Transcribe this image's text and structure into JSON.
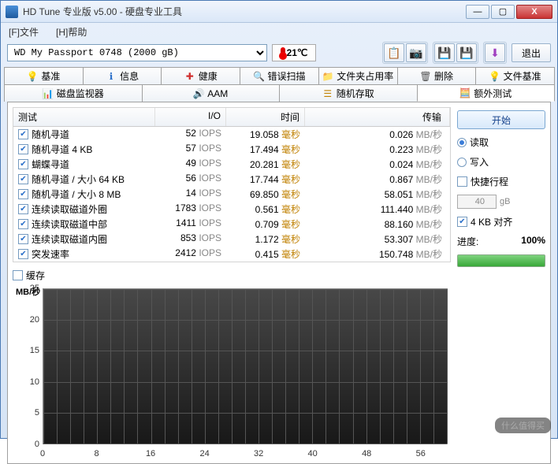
{
  "window": {
    "title": "HD Tune 专业版 v5.00 - 硬盘专业工具",
    "min": "—",
    "max": "▢",
    "close": "X"
  },
  "menu": {
    "file": "[F]文件",
    "help": "[H]帮助"
  },
  "toolbar": {
    "drive": "WD      My Passport 0748  (2000 gB)",
    "temp": "21℃",
    "exit": "退出"
  },
  "tabs_row1": [
    {
      "icon": "💡",
      "label": "基准",
      "color": "#c9a800"
    },
    {
      "icon": "ℹ",
      "label": "信息",
      "color": "#2a6fc9"
    },
    {
      "icon": "✚",
      "label": "健康",
      "color": "#d03030"
    },
    {
      "icon": "🔍",
      "label": "错误扫描",
      "color": "#3a9a3a"
    },
    {
      "icon": "📁",
      "label": "文件夹占用率",
      "color": "#c08000"
    },
    {
      "icon": "🗑",
      "label": "删除",
      "color": "#555"
    },
    {
      "icon": "💡",
      "label": "文件基准",
      "color": "#8a4fc0"
    }
  ],
  "tabs_row2": [
    {
      "icon": "📊",
      "label": "磁盘监视器",
      "color": "#3a9a3a"
    },
    {
      "icon": "🔊",
      "label": "AAM",
      "color": "#c9a800"
    },
    {
      "icon": "☰",
      "label": "随机存取",
      "color": "#c08000"
    },
    {
      "icon": "🧮",
      "label": "额外测试",
      "color": "#2a6fc9",
      "active": true
    }
  ],
  "table": {
    "headers": {
      "test": "测试",
      "io": "I/O",
      "time": "时间",
      "xfer": "传输"
    },
    "io_unit": "IOPS",
    "time_unit": "毫秒",
    "xfer_unit": "MB/秒",
    "rows": [
      {
        "name": "随机寻道",
        "io": "52",
        "time": "19.058",
        "xfer": "0.026"
      },
      {
        "name": "随机寻道 4 KB",
        "io": "57",
        "time": "17.494",
        "xfer": "0.223"
      },
      {
        "name": "蝴蝶寻道",
        "io": "49",
        "time": "20.281",
        "xfer": "0.024"
      },
      {
        "name": "随机寻道 / 大小 64 KB",
        "io": "56",
        "time": "17.744",
        "xfer": "0.867"
      },
      {
        "name": "随机寻道 / 大小 8 MB",
        "io": "14",
        "time": "69.850",
        "xfer": "58.051"
      },
      {
        "name": "连续读取磁道外圈",
        "io": "1783",
        "time": "0.561",
        "xfer": "111.440"
      },
      {
        "name": "连续读取磁道中部",
        "io": "1411",
        "time": "0.709",
        "xfer": "88.160"
      },
      {
        "name": "连续读取磁道内圈",
        "io": "853",
        "time": "1.172",
        "xfer": "53.307"
      },
      {
        "name": "突发速率",
        "io": "2412",
        "time": "0.415",
        "xfer": "150.748"
      }
    ]
  },
  "cache_label": "缓存",
  "chart": {
    "y_unit": "MB/秒",
    "y_ticks": [
      "25",
      "20",
      "15",
      "10",
      "5",
      "0"
    ],
    "x_ticks": [
      "0",
      "8",
      "16",
      "24",
      "32",
      "40",
      "48",
      "56"
    ]
  },
  "side": {
    "start": "开始",
    "read": "读取",
    "write": "写入",
    "trip": "快捷行程",
    "trip_val": "40",
    "trip_unit": "gB",
    "align": "4 KB 对齐",
    "progress_label": "进度:",
    "progress_val": "100%"
  },
  "watermark": "什么值得买"
}
